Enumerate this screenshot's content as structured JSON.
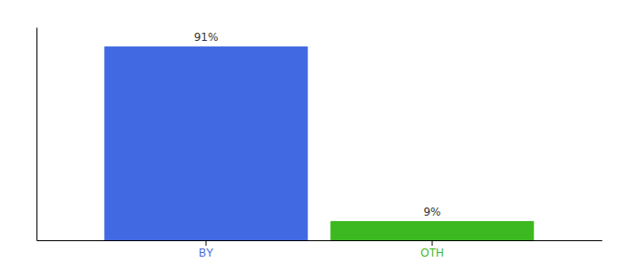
{
  "chart_data": {
    "type": "bar",
    "categories": [
      "BY",
      "OTH"
    ],
    "values": [
      91,
      9
    ],
    "colors": [
      "#4169e1",
      "#3cb820"
    ],
    "ylim": [
      0,
      100
    ],
    "data_labels": true,
    "value_labels": [
      "91%",
      "9%"
    ],
    "tick_labels": "x"
  }
}
